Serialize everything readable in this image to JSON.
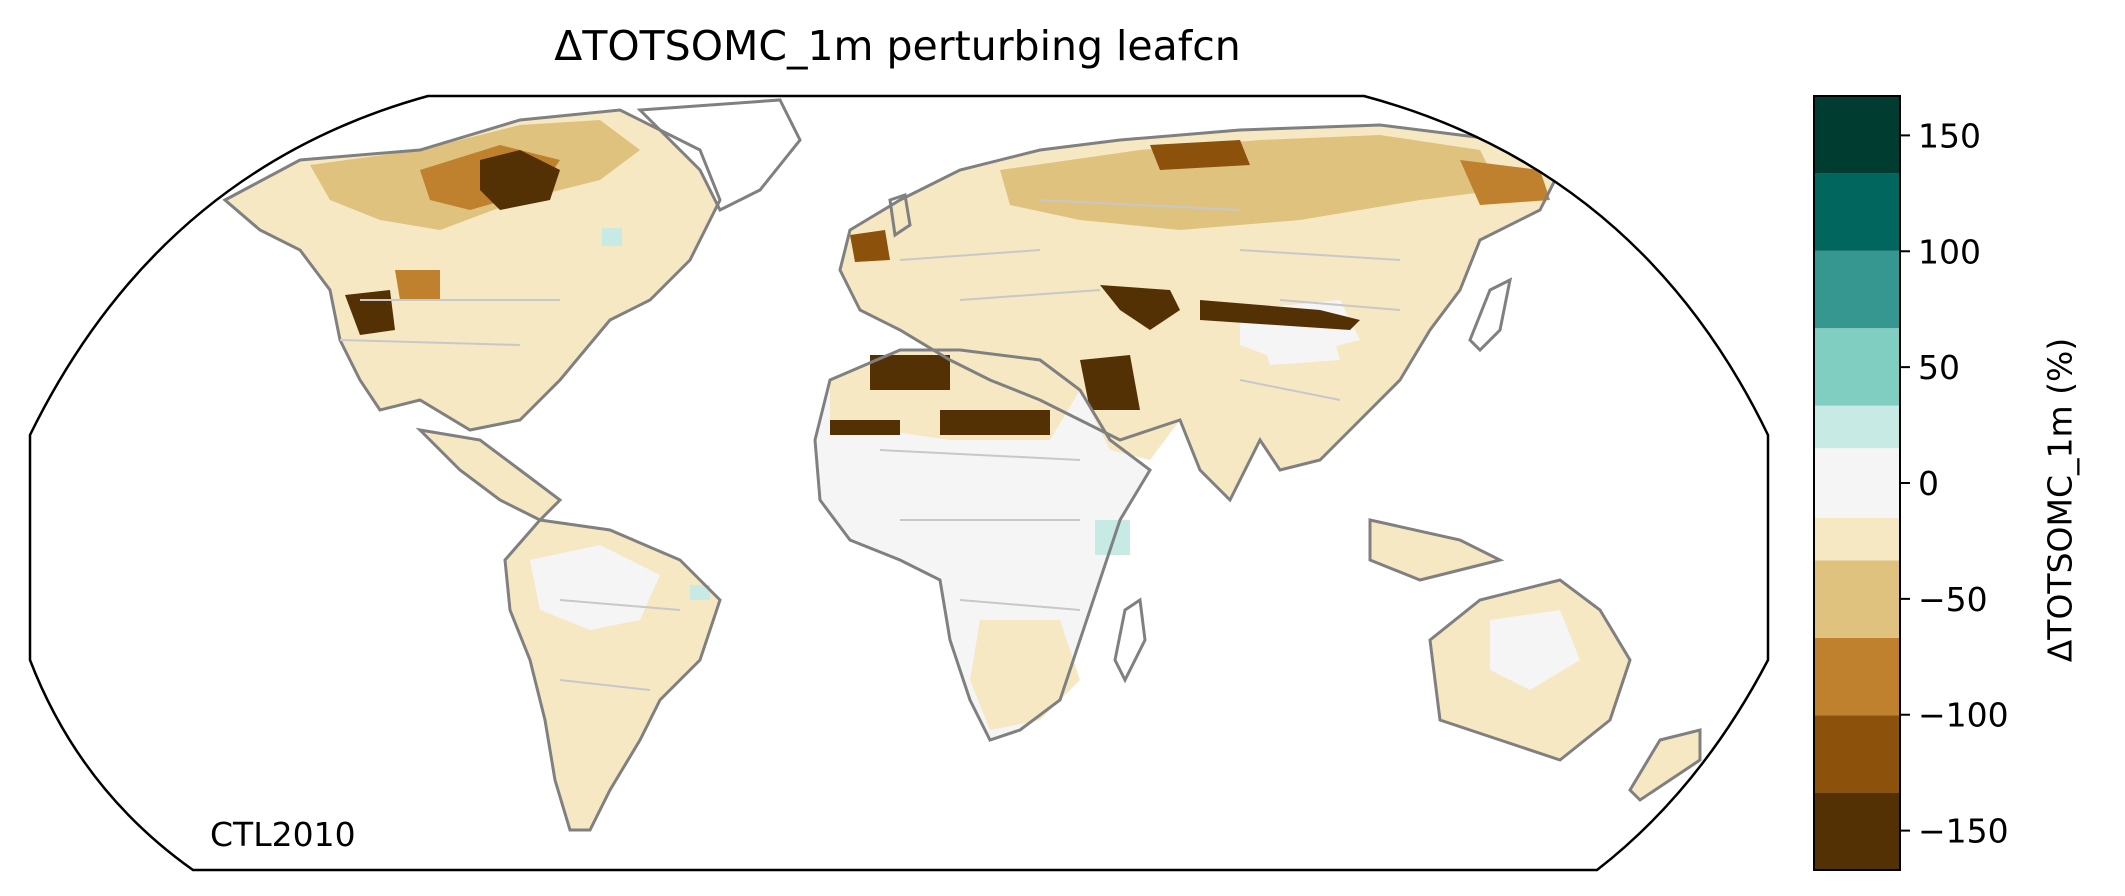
{
  "title": "ΔTOTSOMC_1m perturbing leafcn",
  "annotation": "CTL2010",
  "colorbar": {
    "label": "ΔTOTSOMC_1m (%)",
    "ticks": [
      "150",
      "100",
      "50",
      "0",
      "−50",
      "−100",
      "−150"
    ],
    "tick_values": [
      150,
      100,
      50,
      0,
      -50,
      -100,
      -150
    ],
    "range": [
      -167,
      167
    ],
    "bins": [
      -167,
      -133.6,
      -100.2,
      -66.8,
      -33.4,
      -15,
      15,
      33.4,
      66.8,
      100.2,
      133.6,
      167
    ],
    "colors": [
      "#543005",
      "#8c510a",
      "#bf812d",
      "#dfc27d",
      "#f6e8c3",
      "#f5f5f5",
      "#c7eae5",
      "#80cdc1",
      "#35978f",
      "#01665e",
      "#003c30"
    ]
  },
  "map": {
    "projection": "Robinson",
    "coastline_color": "#808080",
    "border_color": "#c8c8c8"
  }
}
